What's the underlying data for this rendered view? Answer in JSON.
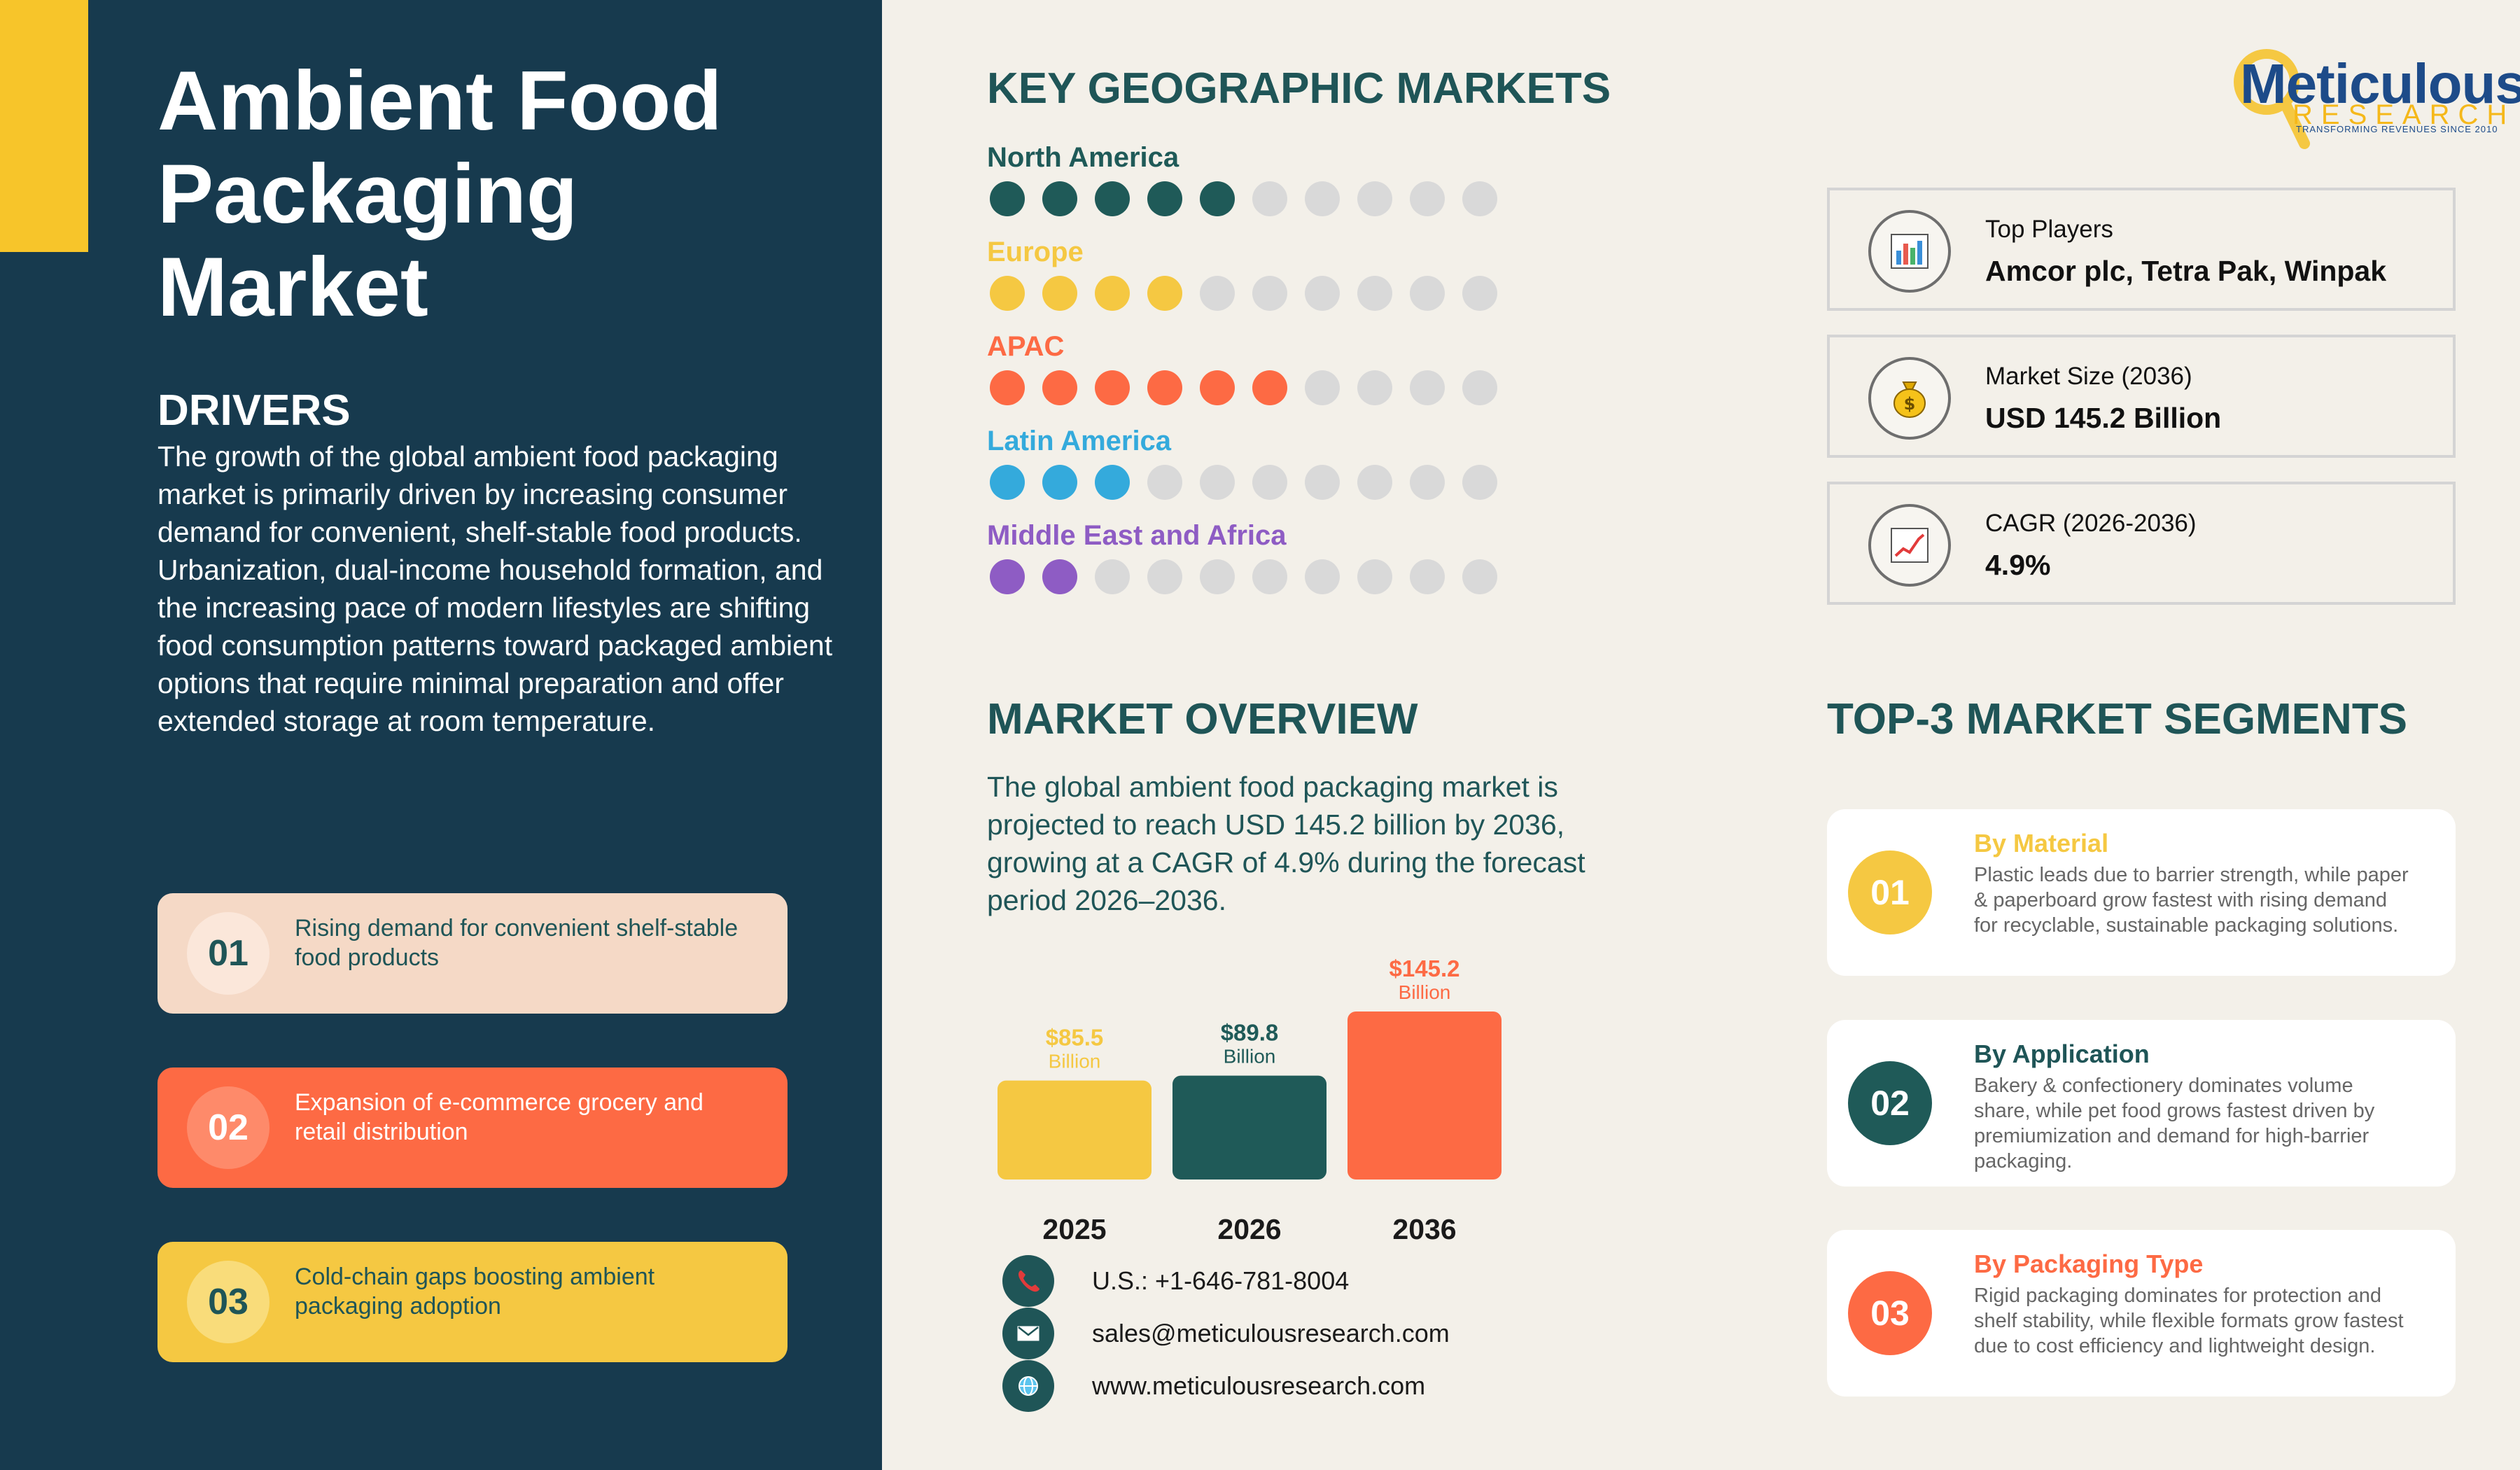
{
  "title_lines": [
    "Ambient Food",
    "Packaging",
    "Market"
  ],
  "drivers": {
    "heading": "DRIVERS",
    "text": "The growth of the global ambient food packaging market is primarily driven by increasing consumer demand for convenient, shelf-stable food products. Urbanization, dual-income household formation, and the increasing pace of modern lifestyles are shifting food consumption patterns toward packaged ambient options that require minimal preparation and offer extended storage at room temperature.",
    "items": [
      {
        "num": "01",
        "text": "Rising demand for convenient shelf-stable food products"
      },
      {
        "num": "02",
        "text": "Expansion of e-commerce grocery and retail distribution"
      },
      {
        "num": "03",
        "text": "Cold-chain gaps boosting ambient packaging adoption"
      }
    ]
  },
  "geo": {
    "title": "KEY GEOGRAPHIC MARKETS",
    "total_dots": 10,
    "inactive_color": "#d9d9d9",
    "regions": [
      {
        "name": "North America",
        "filled": 5,
        "color": "#1f5a58"
      },
      {
        "name": "Europe",
        "filled": 4,
        "color": "#f5c842"
      },
      {
        "name": "APAC",
        "filled": 6,
        "color": "#fd6a44"
      },
      {
        "name": "Latin America",
        "filled": 3,
        "color": "#34aadc"
      },
      {
        "name": "Middle East and Africa",
        "filled": 2,
        "color": "#8e5cc4"
      }
    ]
  },
  "stats": [
    {
      "label": "Top Players",
      "value": "Amcor plc, Tetra Pak, Winpak",
      "icon": "bar-chart-icon"
    },
    {
      "label": "Market Size (2036)",
      "value": "USD 145.2 Billion",
      "icon": "money-bag-icon"
    },
    {
      "label": "CAGR (2026-2036)",
      "value": "4.9%",
      "icon": "trend-chart-icon"
    }
  ],
  "logo": {
    "word": "Meticulous",
    "sub": "RESEARCH",
    "tagline": "TRANSFORMING REVENUES SINCE 2010"
  },
  "overview": {
    "title": "MARKET OVERVIEW",
    "text": "The global ambient food packaging market is projected to reach USD 145.2 billion by 2036, growing at a CAGR of 4.9% during the forecast period 2026–2036."
  },
  "chart_data": {
    "type": "bar",
    "categories": [
      "2025",
      "2026",
      "2036"
    ],
    "values": [
      85.5,
      89.8,
      145.2
    ],
    "value_labels": [
      "$85.5",
      "$89.8",
      "$145.2"
    ],
    "unit_label": "Billion",
    "colors": [
      "#f5c842",
      "#1f5a58",
      "#fd6a44"
    ],
    "title": "",
    "xlabel": "",
    "ylabel": ""
  },
  "contacts": [
    {
      "icon": "phone-icon",
      "text": "U.S.: +1-646-781-8004"
    },
    {
      "icon": "email-icon",
      "text": "sales@meticulousresearch.com"
    },
    {
      "icon": "globe-icon",
      "text": "www.meticulousresearch.com"
    }
  ],
  "segments": {
    "title": "TOP-3 MARKET SEGMENTS",
    "items": [
      {
        "num": "01",
        "title": "By Material",
        "color": "#f5c842",
        "title_color": "#f5c842",
        "text": "Plastic leads due to barrier strength, while paper & paperboard grow fastest with rising demand for recyclable, sustainable packaging solutions."
      },
      {
        "num": "02",
        "title": "By Application",
        "color": "#1f5a58",
        "title_color": "#1f5557",
        "text": "Bakery & confectionery dominates volume share, while pet food grows fastest driven by premiumization and demand for high-barrier packaging."
      },
      {
        "num": "03",
        "title": "By Packaging Type",
        "color": "#fd6a44",
        "title_color": "#fd6a44",
        "text": "Rigid packaging dominates for protection and shelf stability, while flexible formats grow fastest due to cost efficiency and lightweight design."
      }
    ]
  }
}
